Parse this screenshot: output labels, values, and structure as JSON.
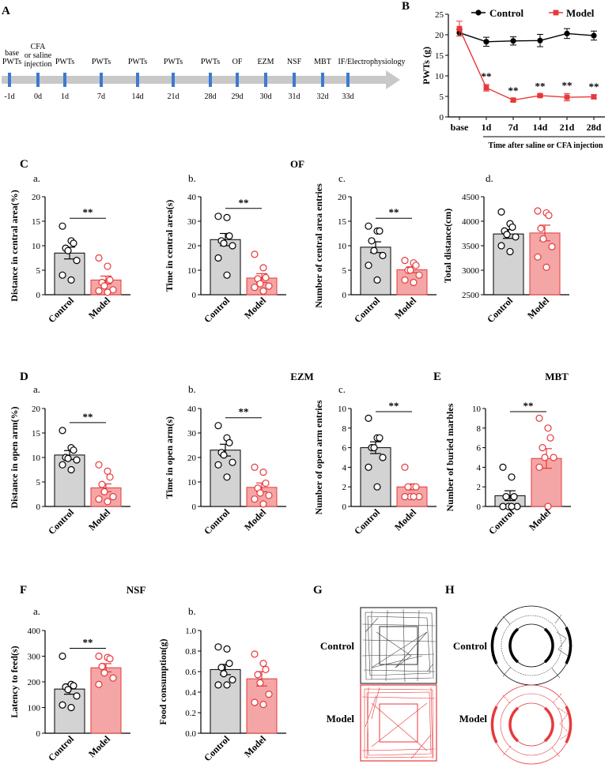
{
  "panel_letters": {
    "A": "A",
    "B": "B",
    "C": "C",
    "D": "D",
    "E": "E",
    "F": "F",
    "G": "G",
    "H": "H"
  },
  "section_titles": {
    "OF": "OF",
    "EZM": "EZM",
    "MBT": "MBT",
    "NSF": "NSF"
  },
  "timeline": {
    "events": [
      {
        "top": "base PWTs",
        "day": "-1d"
      },
      {
        "top": "CFA or saline injection",
        "day": "0d"
      },
      {
        "top": "PWTs",
        "day": "1d"
      },
      {
        "top": "PWTs",
        "day": "7d"
      },
      {
        "top": "PWTs",
        "day": "14d"
      },
      {
        "top": "PWTs",
        "day": "21d"
      },
      {
        "top": "PWTs",
        "day": "28d"
      },
      {
        "top": "OF",
        "day": "29d"
      },
      {
        "top": "EZM",
        "day": "30d"
      },
      {
        "top": "NSF",
        "day": "31d"
      },
      {
        "top": "MBT",
        "day": "32d"
      },
      {
        "top": "IF/Electrophysiology",
        "day": "33d"
      }
    ]
  },
  "groups": {
    "control": "Control",
    "model": "Model"
  },
  "colors": {
    "control_fill": "#d3d3d3",
    "model_fill": "#f4a6a6",
    "model_line": "#e8383b",
    "black": "#000000"
  },
  "sig": "**",
  "chart_data": [
    {
      "id": "B",
      "type": "line",
      "ylabel": "PWTs (g)",
      "xlabel": "Time after saline or CFA injection",
      "categories": [
        "base",
        "1d",
        "7d",
        "14d",
        "21d",
        "28d"
      ],
      "ylim": [
        0,
        25
      ],
      "yticks": [
        0,
        5,
        10,
        15,
        20,
        25
      ],
      "legend": [
        "Control",
        "Model"
      ],
      "series": [
        {
          "name": "Control",
          "values": [
            20.5,
            18.3,
            18.5,
            18.6,
            20.3,
            19.8
          ],
          "err": [
            0.8,
            1.1,
            1.0,
            1.5,
            1.2,
            1.1
          ]
        },
        {
          "name": "Model",
          "values": [
            21.5,
            7.1,
            4.1,
            5.2,
            4.8,
            4.9
          ],
          "err": [
            1.8,
            0.8,
            0.3,
            0.3,
            0.9,
            0.5
          ]
        }
      ],
      "annotations": [
        "**",
        "**",
        "**",
        "**",
        "**"
      ]
    },
    {
      "id": "C-a",
      "sublabel": "a.",
      "type": "bar",
      "ylabel": "Distance in central area(%)",
      "ylim": [
        0,
        20
      ],
      "yticks": [
        0,
        5,
        10,
        15,
        20
      ],
      "means": [
        8.5,
        3.0
      ],
      "sem": [
        1.2,
        0.8
      ],
      "points": [
        [
          14,
          11,
          10.5,
          9.5,
          9,
          7,
          4,
          3
        ],
        [
          7.5,
          5.8,
          3,
          2.5,
          1.8,
          1,
          0.8,
          0.5
        ]
      ],
      "sig": "**"
    },
    {
      "id": "C-b",
      "sublabel": "b.",
      "type": "bar",
      "ylabel": "Time in central area(s)",
      "ylim": [
        0,
        40
      ],
      "yticks": [
        0,
        10,
        20,
        30,
        40
      ],
      "means": [
        22.5,
        6.8
      ],
      "sem": [
        2.5,
        1.8
      ],
      "points": [
        [
          32,
          31.5,
          24,
          22,
          21,
          20,
          15,
          8
        ],
        [
          16.5,
          11,
          7,
          6.5,
          4.5,
          3.5,
          3,
          1.5
        ]
      ],
      "sig": "**"
    },
    {
      "id": "C-c",
      "sublabel": "c.",
      "type": "bar",
      "ylabel": "Number of central area entries",
      "ylim": [
        0,
        20
      ],
      "yticks": [
        0,
        5,
        10,
        15,
        20
      ],
      "means": [
        9.7,
        5.1
      ],
      "sem": [
        1.1,
        0.6
      ],
      "points": [
        [
          14,
          13,
          13,
          11,
          9,
          8,
          6,
          3
        ],
        [
          7,
          6.5,
          6,
          5,
          5,
          4,
          3,
          2.5
        ]
      ],
      "sig": "**"
    },
    {
      "id": "C-d",
      "sublabel": "d.",
      "type": "bar",
      "ylabel": "Total distance(cm)",
      "ylim": [
        2500,
        4500
      ],
      "yticks": [
        2500,
        3000,
        3500,
        4000,
        4500
      ],
      "means": [
        3740,
        3760
      ],
      "sem": [
        90,
        160
      ],
      "points": [
        [
          4190,
          3950,
          3880,
          3800,
          3730,
          3680,
          3500,
          3380
        ],
        [
          4210,
          4170,
          4120,
          3850,
          3640,
          3480,
          3270,
          3060
        ]
      ],
      "sig": ""
    },
    {
      "id": "D-a",
      "sublabel": "a.",
      "type": "bar",
      "ylabel": "Distance in open arm(%)",
      "ylim": [
        0,
        20
      ],
      "yticks": [
        0,
        5,
        10,
        15,
        20
      ],
      "means": [
        10.5,
        3.8
      ],
      "sem": [
        0.9,
        0.8
      ],
      "points": [
        [
          15.5,
          12,
          11.5,
          10,
          9.8,
          9.5,
          8.5,
          7.5
        ],
        [
          8.5,
          7.2,
          6,
          4.5,
          3,
          2,
          1.5,
          1
        ]
      ],
      "sig": "**"
    },
    {
      "id": "D-b",
      "sublabel": "b.",
      "type": "bar",
      "ylabel": "Time in open arm(s)",
      "ylim": [
        0,
        40
      ],
      "yticks": [
        0,
        10,
        20,
        30,
        40
      ],
      "means": [
        23,
        7.8
      ],
      "sem": [
        2.4,
        1.8
      ],
      "points": [
        [
          33,
          28,
          26,
          22,
          21,
          18,
          17,
          12
        ],
        [
          16,
          14,
          9.5,
          7.5,
          5.5,
          4.5,
          3,
          1
        ]
      ],
      "sig": "**"
    },
    {
      "id": "D-c",
      "sublabel": "c.",
      "type": "bar",
      "ylabel": "Number of open arm entries",
      "ylim": [
        0,
        10
      ],
      "yticks": [
        0,
        2,
        4,
        6,
        8,
        10
      ],
      "means": [
        6,
        2
      ],
      "sem": [
        0.6,
        0.3
      ],
      "points": [
        [
          9,
          7,
          7,
          6,
          6,
          5,
          4,
          2
        ],
        [
          4,
          2,
          2,
          2,
          1,
          1,
          1,
          1
        ]
      ],
      "sig": "**"
    },
    {
      "id": "E",
      "type": "bar",
      "ylabel": "Number of buried marbles",
      "ylim": [
        0,
        10
      ],
      "yticks": [
        0,
        2,
        4,
        6,
        8,
        10
      ],
      "means": [
        1.1,
        4.9
      ],
      "sem": [
        0.5,
        1.0
      ],
      "points": [
        [
          4,
          3,
          1,
          1,
          0,
          0,
          0,
          0
        ],
        [
          9,
          8,
          7,
          6,
          5,
          5,
          4,
          0
        ]
      ],
      "sig": "**"
    },
    {
      "id": "F-a",
      "sublabel": "a.",
      "type": "bar",
      "ylabel": "Latency to feed(s)",
      "ylim": [
        0,
        400
      ],
      "yticks": [
        0,
        100,
        200,
        300,
        400
      ],
      "means": [
        172,
        255
      ],
      "sem": [
        20,
        16
      ],
      "points": [
        [
          300,
          190,
          185,
          180,
          170,
          145,
          110,
          100
        ],
        [
          300,
          295,
          290,
          260,
          235,
          215,
          190
        ]
      ],
      "sig": "**"
    },
    {
      "id": "F-b",
      "sublabel": "b.",
      "type": "bar",
      "ylabel": "Food consumption(g)",
      "ylim": [
        0,
        1.0
      ],
      "yticks": [
        0,
        0.2,
        0.4,
        0.6,
        0.8,
        1.0
      ],
      "ytick_labels": [
        "0.0",
        "0.2",
        "0.4",
        "0.6",
        "0.8",
        "1.0"
      ],
      "means": [
        0.62,
        0.53
      ],
      "sem": [
        0.05,
        0.07
      ],
      "points": [
        [
          0.84,
          0.82,
          0.68,
          0.64,
          0.58,
          0.52,
          0.47,
          0.47
        ],
        [
          0.77,
          0.68,
          0.62,
          0.57,
          0.49,
          0.38,
          0.3,
          0.28
        ]
      ],
      "sig": ""
    }
  ]
}
